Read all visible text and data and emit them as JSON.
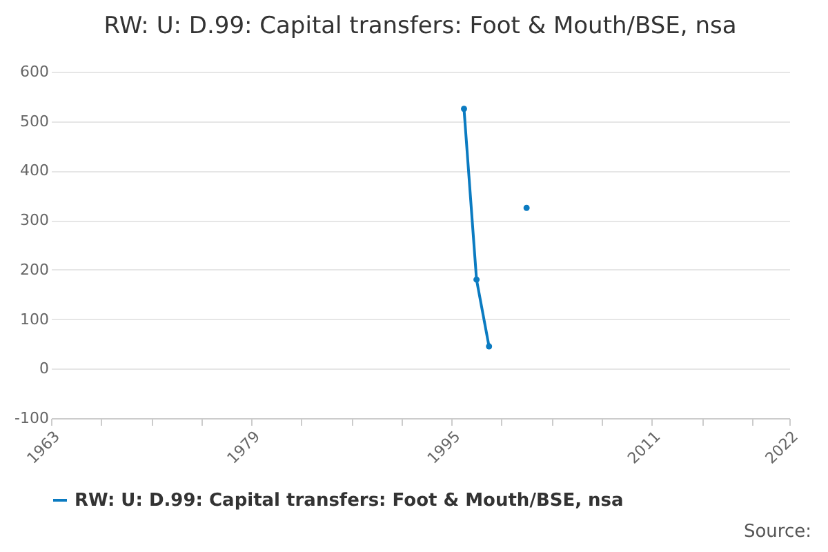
{
  "chart_data": {
    "type": "line",
    "title": "RW: U: D.99: Capital transfers: Foot & Mouth/BSE, nsa",
    "x": [
      1996,
      1997,
      1998,
      1999,
      2000,
      2001
    ],
    "series": [
      {
        "name": "RW: U: D.99: Capital transfers: Foot & Mouth/BSE, nsa",
        "color": "#0b7bc1",
        "values": [
          525,
          180,
          45,
          null,
          null,
          325
        ]
      }
    ],
    "xlim": [
      1963,
      2022
    ],
    "xticks": [
      1963,
      {
        "value": 1967,
        "label": null
      },
      {
        "value": 1971,
        "label": null
      },
      {
        "value": 1975,
        "label": null
      },
      1979,
      {
        "value": 1983,
        "label": null
      },
      {
        "value": 1987,
        "label": null
      },
      {
        "value": 1991,
        "label": null
      },
      1995,
      {
        "value": 1999,
        "label": null
      },
      {
        "value": 2003,
        "label": null
      },
      {
        "value": 2007,
        "label": null
      },
      2011,
      {
        "value": 2015,
        "label": null
      },
      {
        "value": 2019,
        "label": null
      },
      2022
    ],
    "ylim": [
      -100,
      600
    ],
    "yticks": [
      -100,
      0,
      100,
      200,
      300,
      400,
      500,
      600
    ],
    "grid": "y",
    "legend": "bottom",
    "marker": "circle",
    "line_style": "solid",
    "annotations": [
      "Source:"
    ]
  }
}
